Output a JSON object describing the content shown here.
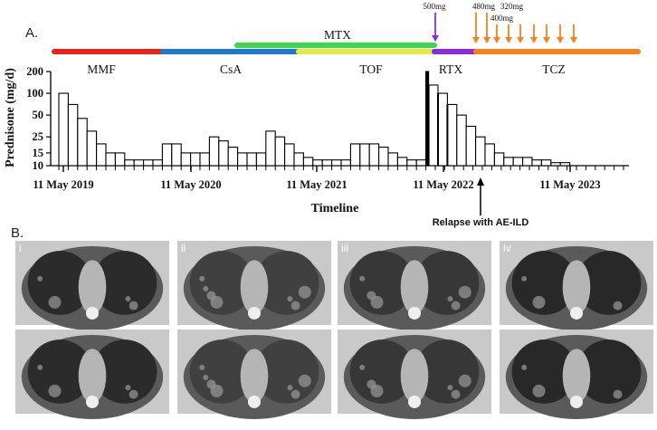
{
  "panel_a": {
    "label": "A.",
    "treatments": [
      {
        "name": "MMF",
        "color": "#e8231f"
      },
      {
        "name": "CsA",
        "color": "#1f78c8"
      },
      {
        "name": "MTX",
        "color": "#3bd84a"
      },
      {
        "name": "TOF",
        "color": "#e6e84a"
      },
      {
        "name": "RTX",
        "color": "#8a2be2"
      },
      {
        "name": "TCZ",
        "color": "#f7821e"
      }
    ],
    "doses": {
      "rtx": "500mg",
      "tcz_first": "480mg",
      "tcz_second": "320mg",
      "tcz_rest": "400mg"
    },
    "relapse_note": "Relapse with AE-ILD"
  },
  "panel_b": {
    "label": "B.",
    "columns": [
      "i",
      "ii",
      "iii",
      "iv"
    ]
  },
  "chart_data": {
    "type": "bar",
    "xlabel": "Timeline",
    "ylabel": "Prednisone (mg/d)",
    "y_scale": "log",
    "y_ticks": [
      10,
      15,
      25,
      50,
      100,
      200
    ],
    "y_tick_labels": [
      "10",
      "15",
      "25",
      "50",
      "100",
      "200"
    ],
    "ylim": [
      10,
      200
    ],
    "x_tick_labels": [
      "11 May 2019",
      "11 May 2020",
      "11 May 2021",
      "11 May 2022",
      "11 May 2023"
    ],
    "values": [
      100,
      70,
      45,
      30,
      20,
      15,
      15,
      12,
      12,
      12,
      12,
      20,
      20,
      15,
      15,
      15,
      25,
      22,
      18,
      15,
      15,
      15,
      30,
      25,
      20,
      15,
      13,
      12,
      12,
      12,
      12,
      20,
      20,
      20,
      18,
      15,
      13,
      12,
      12,
      200,
      130,
      100,
      70,
      50,
      35,
      25,
      20,
      15,
      13,
      13,
      13,
      12,
      12,
      11,
      11
    ],
    "relapse_index": 39
  }
}
